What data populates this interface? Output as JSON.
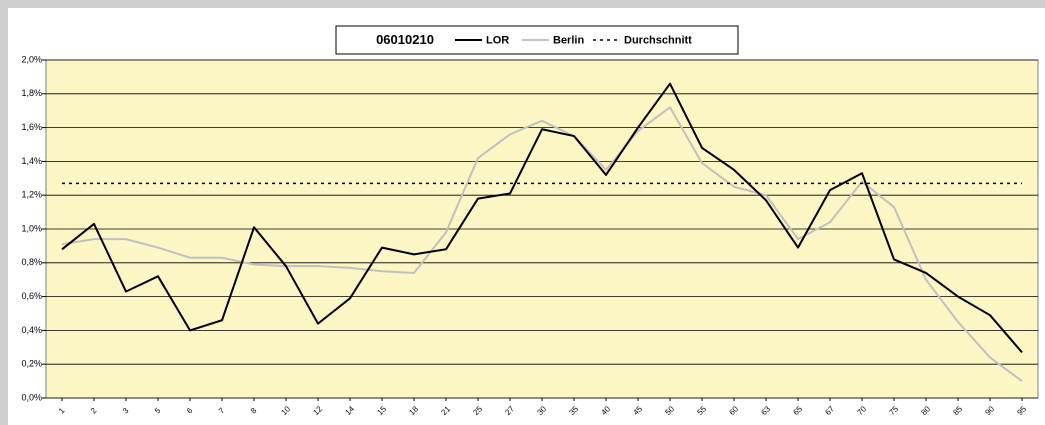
{
  "chart_data": {
    "type": "line",
    "title": "06010210",
    "categories": [
      "1",
      "2",
      "3",
      "5",
      "6",
      "7",
      "8",
      "10",
      "12",
      "14",
      "15",
      "18",
      "21",
      "25",
      "27",
      "30",
      "35",
      "40",
      "45",
      "50",
      "55",
      "60",
      "63",
      "65",
      "67",
      "70",
      "75",
      "80",
      "85",
      "90",
      "95"
    ],
    "series": [
      {
        "name": "LOR",
        "color": "#000000",
        "style": "solid",
        "values": [
          0.88,
          1.03,
          0.63,
          0.72,
          0.4,
          0.46,
          1.01,
          0.78,
          0.44,
          0.59,
          0.89,
          0.85,
          0.88,
          1.18,
          1.21,
          1.59,
          1.55,
          1.32,
          1.6,
          1.86,
          1.48,
          1.35,
          1.17,
          0.89,
          1.23,
          1.33,
          0.82,
          0.74,
          0.6,
          0.49,
          0.27
        ]
      },
      {
        "name": "Berlin",
        "color": "#c0c0c0",
        "style": "solid",
        "values": [
          0.91,
          0.94,
          0.94,
          0.89,
          0.83,
          0.83,
          0.79,
          0.78,
          0.78,
          0.77,
          0.75,
          0.74,
          0.98,
          1.42,
          1.56,
          1.64,
          1.55,
          1.35,
          1.58,
          1.72,
          1.39,
          1.25,
          1.2,
          0.94,
          1.04,
          1.28,
          1.13,
          0.7,
          0.45,
          0.24,
          0.1
        ]
      },
      {
        "name": "Durchschnitt",
        "color": "#000000",
        "style": "dotted",
        "values": [
          1.27,
          1.27,
          1.27,
          1.27,
          1.27,
          1.27,
          1.27,
          1.27,
          1.27,
          1.27,
          1.27,
          1.27,
          1.27,
          1.27,
          1.27,
          1.27,
          1.27,
          1.27,
          1.27,
          1.27,
          1.27,
          1.27,
          1.27,
          1.27,
          1.27,
          1.27,
          1.27,
          1.27,
          1.27,
          1.27,
          1.27
        ]
      }
    ],
    "ylim": [
      0,
      2.0
    ],
    "yticks": [
      {
        "value": 0,
        "label": "0,0%"
      },
      {
        "value": 0.2,
        "label": "0,2%"
      },
      {
        "value": 0.4,
        "label": "0,4%"
      },
      {
        "value": 0.6,
        "label": "0,6%"
      },
      {
        "value": 0.8,
        "label": "0,8%"
      },
      {
        "value": 1.0,
        "label": "1,0%"
      },
      {
        "value": 1.2,
        "label": "1,2%"
      },
      {
        "value": 1.4,
        "label": "1,4%"
      },
      {
        "value": 1.6,
        "label": "1,6%"
      },
      {
        "value": 1.8,
        "label": "1,8%"
      },
      {
        "value": 2.0,
        "label": "2,0%"
      }
    ],
    "grid": true,
    "plot_color": "#fcf6c4"
  }
}
